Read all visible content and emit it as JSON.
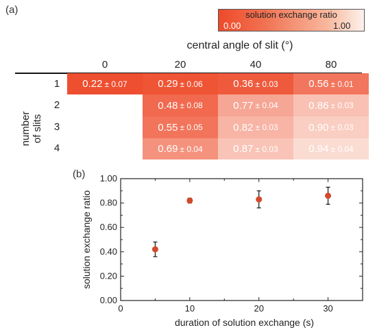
{
  "panel_a_label": "(a)",
  "panel_b_label": "(b)",
  "colors": {
    "scale_low": "#ee4a2a",
    "scale_high": "#fdf2ec",
    "marker": "#d24a2a",
    "error_bar": "#111111"
  },
  "chart_data": [
    {
      "type": "heatmap",
      "colorbar": {
        "title": "solution exchange ratio",
        "min_label": "0.00",
        "max_label": "1.00",
        "range": [
          0,
          1
        ]
      },
      "column_title": "central angle of slit (°)",
      "columns": [
        "0",
        "20",
        "40",
        "80"
      ],
      "row_title": [
        "number",
        "of slits"
      ],
      "rows": [
        "1",
        "2",
        "3",
        "4"
      ],
      "cells": [
        {
          "row": 0,
          "col": 0,
          "value": 0.22,
          "mean": "0.22",
          "err": "± 0.07"
        },
        {
          "row": 0,
          "col": 1,
          "value": 0.29,
          "mean": "0.29",
          "err": "± 0.06"
        },
        {
          "row": 0,
          "col": 2,
          "value": 0.36,
          "mean": "0.36",
          "err": "± 0.03"
        },
        {
          "row": 0,
          "col": 3,
          "value": 0.56,
          "mean": "0.56",
          "err": "± 0.01"
        },
        {
          "row": 1,
          "col": 1,
          "value": 0.48,
          "mean": "0.48",
          "err": "± 0.08"
        },
        {
          "row": 1,
          "col": 2,
          "value": 0.77,
          "mean": "0.77",
          "err": "± 0.04"
        },
        {
          "row": 1,
          "col": 3,
          "value": 0.86,
          "mean": "0.86",
          "err": "± 0.03"
        },
        {
          "row": 2,
          "col": 1,
          "value": 0.55,
          "mean": "0.55",
          "err": "± 0.05"
        },
        {
          "row": 2,
          "col": 2,
          "value": 0.82,
          "mean": "0.82",
          "err": "± 0.03"
        },
        {
          "row": 2,
          "col": 3,
          "value": 0.9,
          "mean": "0.90",
          "err": "± 0.03"
        },
        {
          "row": 3,
          "col": 1,
          "value": 0.69,
          "mean": "0.69",
          "err": "± 0.04"
        },
        {
          "row": 3,
          "col": 2,
          "value": 0.87,
          "mean": "0.87",
          "err": "± 0.03"
        },
        {
          "row": 3,
          "col": 3,
          "value": 0.94,
          "mean": "0.94",
          "err": "± 0.04"
        }
      ]
    },
    {
      "type": "scatter",
      "xlabel": "duration of solution exchange (s)",
      "ylabel": "solution exchange ratio",
      "xlim": [
        0,
        35
      ],
      "ylim": [
        0,
        1
      ],
      "xticks": [
        0,
        10,
        20,
        30
      ],
      "yticks": [
        0.0,
        0.2,
        0.4,
        0.6,
        0.8,
        1.0
      ],
      "ytick_labels": [
        "0.00",
        "0.20",
        "0.40",
        "0.60",
        "0.80",
        "1.00"
      ],
      "grid": false,
      "points": [
        {
          "x": 5,
          "y": 0.42,
          "err": 0.06
        },
        {
          "x": 10,
          "y": 0.82,
          "err": 0.02
        },
        {
          "x": 20,
          "y": 0.83,
          "err": 0.07
        },
        {
          "x": 30,
          "y": 0.86,
          "err": 0.07
        }
      ]
    }
  ]
}
